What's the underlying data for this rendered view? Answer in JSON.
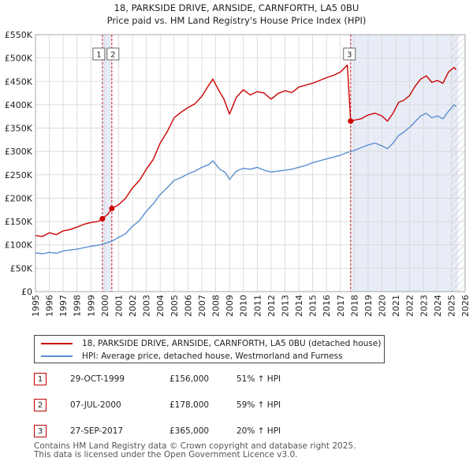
{
  "chart_data": {
    "type": "line",
    "title_line1": "18, PARKSIDE DRIVE, ARNSIDE, CARNFORTH, LA5 0BU",
    "title_line2": "Price paid vs. HM Land Registry's House Price Index (HPI)",
    "x_range": [
      1995,
      2026
    ],
    "ylim": [
      0,
      550000
    ],
    "y_ticks": [
      0,
      50000,
      100000,
      150000,
      200000,
      250000,
      300000,
      350000,
      400000,
      450000,
      500000,
      550000
    ],
    "y_tick_labels": [
      "£0",
      "£50K",
      "£100K",
      "£150K",
      "£200K",
      "£250K",
      "£300K",
      "£350K",
      "£400K",
      "£450K",
      "£500K",
      "£550K"
    ],
    "x_tick_labels": [
      "1995",
      "1996",
      "1997",
      "1998",
      "1999",
      "2000",
      "2001",
      "2002",
      "2003",
      "2004",
      "2005",
      "2006",
      "2007",
      "2008",
      "2009",
      "2010",
      "2011",
      "2012",
      "2013",
      "2014",
      "2015",
      "2016",
      "2017",
      "2018",
      "2019",
      "2020",
      "2021",
      "2022",
      "2023",
      "2024",
      "2025",
      "2026"
    ],
    "shaded_ranges": [
      [
        1999.83,
        2000.51
      ],
      [
        2017.74,
        2025.5
      ]
    ],
    "hatched_from": 2025.0,
    "series": [
      {
        "name": "18, PARKSIDE DRIVE, ARNSIDE, CARNFORTH, LA5 0BU (detached house)",
        "color": "#cc0000",
        "points": [
          [
            1995.0,
            120000
          ],
          [
            1995.5,
            118000
          ],
          [
            1996.0,
            126000
          ],
          [
            1996.5,
            122000
          ],
          [
            1997.0,
            130000
          ],
          [
            1997.5,
            133000
          ],
          [
            1998.0,
            138000
          ],
          [
            1998.5,
            144000
          ],
          [
            1999.0,
            148000
          ],
          [
            1999.5,
            150000
          ],
          [
            1999.83,
            156000
          ],
          [
            2000.2,
            165000
          ],
          [
            2000.51,
            178000
          ],
          [
            2001.0,
            186000
          ],
          [
            2001.5,
            200000
          ],
          [
            2002.0,
            222000
          ],
          [
            2002.5,
            238000
          ],
          [
            2003.0,
            262000
          ],
          [
            2003.5,
            283000
          ],
          [
            2004.0,
            318000
          ],
          [
            2004.5,
            342000
          ],
          [
            2005.0,
            372000
          ],
          [
            2005.5,
            384000
          ],
          [
            2006.0,
            394000
          ],
          [
            2006.5,
            402000
          ],
          [
            2007.0,
            418000
          ],
          [
            2007.5,
            442000
          ],
          [
            2007.8,
            455000
          ],
          [
            2008.2,
            432000
          ],
          [
            2008.6,
            412000
          ],
          [
            2009.0,
            380000
          ],
          [
            2009.5,
            416000
          ],
          [
            2010.0,
            432000
          ],
          [
            2010.5,
            421000
          ],
          [
            2011.0,
            428000
          ],
          [
            2011.5,
            425000
          ],
          [
            2012.0,
            412000
          ],
          [
            2012.5,
            424000
          ],
          [
            2013.0,
            430000
          ],
          [
            2013.5,
            426000
          ],
          [
            2014.0,
            438000
          ],
          [
            2014.5,
            442000
          ],
          [
            2015.0,
            446000
          ],
          [
            2015.5,
            452000
          ],
          [
            2016.0,
            458000
          ],
          [
            2016.5,
            463000
          ],
          [
            2017.0,
            470000
          ],
          [
            2017.5,
            485000
          ],
          [
            2017.74,
            365000
          ],
          [
            2018.0,
            367000
          ],
          [
            2018.5,
            370000
          ],
          [
            2019.0,
            378000
          ],
          [
            2019.5,
            382000
          ],
          [
            2020.0,
            376000
          ],
          [
            2020.4,
            365000
          ],
          [
            2020.8,
            382000
          ],
          [
            2021.2,
            405000
          ],
          [
            2021.6,
            410000
          ],
          [
            2022.0,
            420000
          ],
          [
            2022.4,
            440000
          ],
          [
            2022.8,
            455000
          ],
          [
            2023.2,
            462000
          ],
          [
            2023.6,
            448000
          ],
          [
            2024.0,
            452000
          ],
          [
            2024.4,
            446000
          ],
          [
            2024.8,
            470000
          ],
          [
            2025.2,
            480000
          ],
          [
            2025.35,
            475000
          ]
        ]
      },
      {
        "name": "HPI: Average price, detached house, Westmorland and Furness",
        "color": "#5b8fd0",
        "points": [
          [
            1995.0,
            83000
          ],
          [
            1995.5,
            81000
          ],
          [
            1996.0,
            84000
          ],
          [
            1996.5,
            82000
          ],
          [
            1997.0,
            87000
          ],
          [
            1997.5,
            89000
          ],
          [
            1998.0,
            91000
          ],
          [
            1998.5,
            94000
          ],
          [
            1999.0,
            97000
          ],
          [
            1999.5,
            99000
          ],
          [
            2000.0,
            103000
          ],
          [
            2000.5,
            108000
          ],
          [
            2001.0,
            116000
          ],
          [
            2001.5,
            124000
          ],
          [
            2002.0,
            140000
          ],
          [
            2002.5,
            152000
          ],
          [
            2003.0,
            172000
          ],
          [
            2003.5,
            188000
          ],
          [
            2004.0,
            208000
          ],
          [
            2004.5,
            222000
          ],
          [
            2005.0,
            238000
          ],
          [
            2005.5,
            244000
          ],
          [
            2006.0,
            252000
          ],
          [
            2006.5,
            258000
          ],
          [
            2007.0,
            266000
          ],
          [
            2007.5,
            272000
          ],
          [
            2007.8,
            280000
          ],
          [
            2008.3,
            262000
          ],
          [
            2008.7,
            255000
          ],
          [
            2009.0,
            240000
          ],
          [
            2009.5,
            258000
          ],
          [
            2010.0,
            264000
          ],
          [
            2010.5,
            262000
          ],
          [
            2011.0,
            266000
          ],
          [
            2011.5,
            260000
          ],
          [
            2012.0,
            256000
          ],
          [
            2012.5,
            258000
          ],
          [
            2013.0,
            260000
          ],
          [
            2013.5,
            262000
          ],
          [
            2014.0,
            266000
          ],
          [
            2014.5,
            270000
          ],
          [
            2015.0,
            276000
          ],
          [
            2015.5,
            280000
          ],
          [
            2016.0,
            284000
          ],
          [
            2016.5,
            288000
          ],
          [
            2017.0,
            292000
          ],
          [
            2017.5,
            298000
          ],
          [
            2018.0,
            302000
          ],
          [
            2018.5,
            308000
          ],
          [
            2019.0,
            314000
          ],
          [
            2019.5,
            318000
          ],
          [
            2020.0,
            312000
          ],
          [
            2020.4,
            306000
          ],
          [
            2020.8,
            318000
          ],
          [
            2021.2,
            334000
          ],
          [
            2021.6,
            342000
          ],
          [
            2022.0,
            352000
          ],
          [
            2022.4,
            364000
          ],
          [
            2022.8,
            376000
          ],
          [
            2023.2,
            382000
          ],
          [
            2023.6,
            372000
          ],
          [
            2024.0,
            376000
          ],
          [
            2024.4,
            370000
          ],
          [
            2024.8,
            386000
          ],
          [
            2025.2,
            400000
          ],
          [
            2025.35,
            396000
          ]
        ]
      }
    ],
    "markers": [
      {
        "label": "1",
        "x": 1999.83,
        "y": 156000
      },
      {
        "label": "2",
        "x": 2000.51,
        "y": 178000
      },
      {
        "label": "3",
        "x": 2017.74,
        "y": 365000
      }
    ]
  },
  "legend": {
    "items": [
      {
        "label": "18, PARKSIDE DRIVE, ARNSIDE, CARNFORTH, LA5 0BU (detached house)",
        "color": "#cc0000"
      },
      {
        "label": "HPI: Average price, detached house, Westmorland and Furness",
        "color": "#5b8fd0"
      }
    ]
  },
  "sales": [
    {
      "num": "1",
      "date": "29-OCT-1999",
      "price": "£156,000",
      "hpi": "51% ↑ HPI"
    },
    {
      "num": "2",
      "date": "07-JUL-2000",
      "price": "£178,000",
      "hpi": "59% ↑ HPI"
    },
    {
      "num": "3",
      "date": "27-SEP-2017",
      "price": "£365,000",
      "hpi": "20% ↑ HPI"
    }
  ],
  "footer": {
    "line1": "Contains HM Land Registry data © Crown copyright and database right 2025.",
    "line2": "This data is licensed under the Open Government Licence v3.0."
  }
}
